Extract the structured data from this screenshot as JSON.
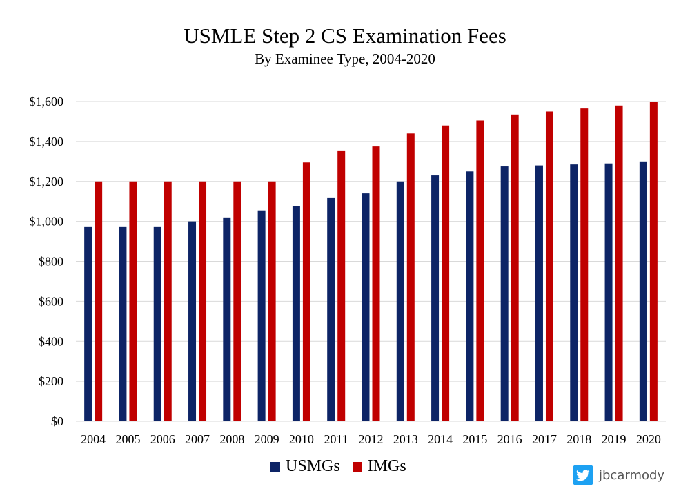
{
  "chart_data": {
    "type": "bar",
    "title": "USMLE Step 2 CS Examination Fees",
    "subtitle": "By Examinee Type, 2004-2020",
    "categories": [
      "2004",
      "2005",
      "2006",
      "2007",
      "2008",
      "2009",
      "2010",
      "2011",
      "2012",
      "2013",
      "2014",
      "2015",
      "2016",
      "2017",
      "2018",
      "2019",
      "2020"
    ],
    "series": [
      {
        "name": "USMGs",
        "color": "#0d2466",
        "values": [
          975,
          975,
          975,
          1000,
          1020,
          1055,
          1075,
          1120,
          1140,
          1200,
          1230,
          1250,
          1275,
          1280,
          1285,
          1290,
          1300
        ]
      },
      {
        "name": "IMGs",
        "color": "#c00000",
        "values": [
          1200,
          1200,
          1200,
          1200,
          1200,
          1200,
          1295,
          1355,
          1375,
          1440,
          1480,
          1505,
          1535,
          1550,
          1565,
          1580,
          1600
        ]
      }
    ],
    "ylim": [
      0,
      1600
    ],
    "yticks": [
      0,
      200,
      400,
      600,
      800,
      1000,
      1200,
      1400,
      1600
    ],
    "ytick_labels": [
      "$0",
      "$200",
      "$400",
      "$600",
      "$800",
      "$1,000",
      "$1,200",
      "$1,400",
      "$1,600"
    ],
    "grid": true,
    "legend": "bottom-center"
  },
  "legend": {
    "usmg_label": "USMGs",
    "img_label": "IMGs"
  },
  "watermark": {
    "handle": "jbcarmody",
    "icon": "twitter-bird-icon"
  }
}
